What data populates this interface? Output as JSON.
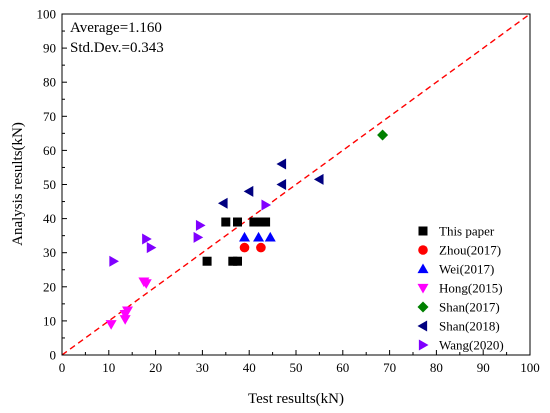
{
  "chart_data": {
    "type": "scatter",
    "title": "",
    "xlabel": "Test results(kN)",
    "ylabel": "Analysis results(kN)",
    "xlim": [
      0,
      100
    ],
    "ylim": [
      0,
      100
    ],
    "xticks": [
      0,
      10,
      20,
      30,
      40,
      50,
      60,
      70,
      80,
      90,
      100
    ],
    "yticks": [
      0,
      10,
      20,
      30,
      40,
      50,
      60,
      70,
      80,
      90,
      100
    ],
    "grid": false,
    "legend_position": "bottom-right",
    "annotations": [
      "Average=1.160",
      "Std.Dev.=0.343"
    ],
    "reference_line": {
      "style": "dashed",
      "color": "#ff0000",
      "x": [
        0,
        100
      ],
      "y": [
        0,
        100
      ]
    },
    "series": [
      {
        "name": "This paper",
        "marker": "square",
        "color": "#000000",
        "points": [
          [
            31,
            27.5
          ],
          [
            35,
            39
          ],
          [
            36.5,
            27.5
          ],
          [
            37.5,
            27.5
          ],
          [
            37.5,
            39
          ],
          [
            41,
            39
          ],
          [
            42.5,
            39
          ],
          [
            43.5,
            39
          ]
        ]
      },
      {
        "name": "Zhou(2017)",
        "marker": "circle",
        "color": "#ff0000",
        "points": [
          [
            39,
            31.5
          ],
          [
            42.5,
            31.5
          ]
        ]
      },
      {
        "name": "Wei(2017)",
        "marker": "triangle-up",
        "color": "#0000ff",
        "points": [
          [
            39,
            34.5
          ],
          [
            42,
            34.5
          ],
          [
            44.5,
            34.5
          ]
        ]
      },
      {
        "name": "Hong(2015)",
        "marker": "triangle-down",
        "color": "#ff00ff",
        "points": [
          [
            10.5,
            9
          ],
          [
            13.5,
            10.5
          ],
          [
            13.5,
            12
          ],
          [
            14,
            13
          ],
          [
            17.5,
            21.5
          ],
          [
            18,
            21
          ]
        ]
      },
      {
        "name": "Shan(2017)",
        "marker": "diamond",
        "color": "#008000",
        "points": [
          [
            68.5,
            64.5
          ]
        ]
      },
      {
        "name": "Shan(2018)",
        "marker": "triangle-left",
        "color": "#000080",
        "points": [
          [
            34.5,
            44.5
          ],
          [
            40,
            48
          ],
          [
            47,
            50
          ],
          [
            47,
            56
          ],
          [
            55,
            51.5
          ]
        ]
      },
      {
        "name": "Wang(2020)",
        "marker": "triangle-right",
        "color": "#8000ff",
        "points": [
          [
            11,
            27.5
          ],
          [
            18,
            34
          ],
          [
            19,
            31.5
          ],
          [
            29,
            34.5
          ],
          [
            29.5,
            38
          ],
          [
            43.5,
            44
          ]
        ]
      }
    ]
  }
}
